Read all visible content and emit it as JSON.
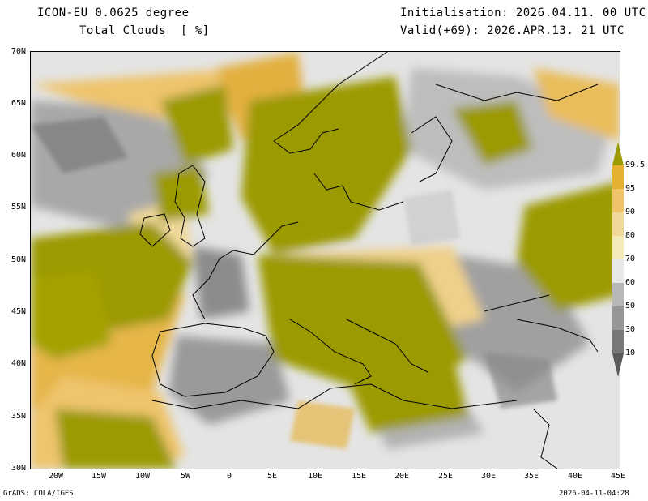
{
  "header": {
    "model": "ICON-EU 0.0625 degree",
    "field": "Total Clouds  [ %]",
    "init": "Initialisation: 2026.04.11. 00 UTC",
    "valid": "Valid(+69): 2026.APR.13. 21 UTC"
  },
  "map": {
    "lat_labels": [
      "70N",
      "65N",
      "60N",
      "55N",
      "50N",
      "45N",
      "40N",
      "35N",
      "30N"
    ],
    "lon_labels": [
      "20W",
      "15W",
      "10W",
      "5W",
      "0",
      "5E",
      "10E",
      "15E",
      "20E",
      "25E",
      "30E",
      "35E",
      "40E",
      "45E"
    ],
    "extent": {
      "lon": [
        -23,
        45
      ],
      "lat": [
        30,
        70
      ]
    }
  },
  "colorbar": {
    "labels": [
      "99.5",
      "95",
      "90",
      "80",
      "70",
      "60",
      "50",
      "30",
      "10"
    ],
    "colors": [
      "#9b9a00",
      "#e6b030",
      "#eec36a",
      "#f0d89a",
      "#f2eab8",
      "#e8e8e8",
      "#b8b8b8",
      "#969696",
      "#787878",
      "#5a5a5a"
    ]
  },
  "footer": {
    "left": "GrADS: COLA/IGES",
    "right": "2026-04-11-04:28"
  }
}
